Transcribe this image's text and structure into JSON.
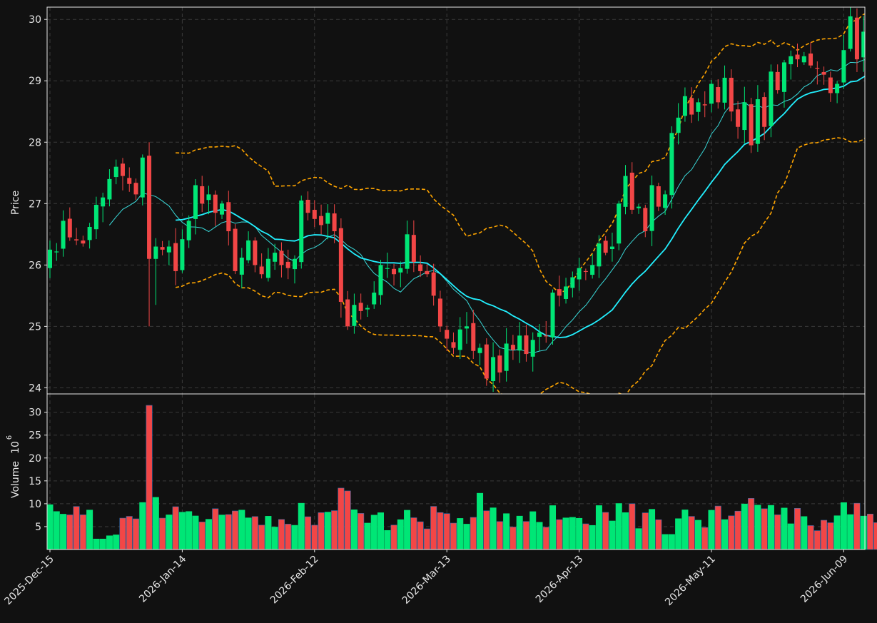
{
  "chart_data": {
    "type": "candlestick",
    "panels": [
      "price",
      "volume"
    ],
    "price_axis": {
      "label": "Price",
      "ylim": [
        23.9,
        30.2
      ],
      "ticks": [
        24,
        25,
        26,
        27,
        28,
        29,
        30
      ]
    },
    "volume_axis": {
      "label": "Volume",
      "scale_note": "6",
      "ylim": [
        0,
        34
      ],
      "ticks": [
        5,
        10,
        15,
        20,
        25,
        30
      ]
    },
    "x_axis": {
      "tick_labels": [
        "2025-Dec-15",
        "2026-Jan-14",
        "2026-Feb-12",
        "2026-Mar-13",
        "2026-Apr-13",
        "2026-May-11",
        "2026-Jun-09"
      ],
      "tick_indices": [
        0,
        20,
        40,
        60,
        80,
        100,
        120
      ]
    },
    "grid": true,
    "colors": {
      "background": "#111111",
      "up": "#00e676",
      "down": "#f24646",
      "ma_short": "#39d9d9",
      "ma_long": "#22f0ff",
      "bands": "#ffa500",
      "grid": "#3a3a3a",
      "axis": "#e6e6e6"
    },
    "closes": [
      26.25,
      26.22,
      26.72,
      26.45,
      26.4,
      26.35,
      26.62,
      26.98,
      27.1,
      27.4,
      27.6,
      27.45,
      27.32,
      27.15,
      27.75,
      26.1,
      26.3,
      26.25,
      26.3,
      25.9,
      26.42,
      26.72,
      27.3,
      27.0,
      27.15,
      26.85,
      27.0,
      26.55,
      25.9,
      26.12,
      26.4,
      26.0,
      25.85,
      26.1,
      26.2,
      26.0,
      25.95,
      26.1,
      27.05,
      26.85,
      26.75,
      26.65,
      26.85,
      26.55,
      25.4,
      25.0,
      25.35,
      25.25,
      25.3,
      25.55,
      26.0,
      25.95,
      25.85,
      25.95,
      26.5,
      26.05,
      25.9,
      25.85,
      25.5,
      25.0,
      24.8,
      24.65,
      24.95,
      25.0,
      24.6,
      24.65,
      24.15,
      24.5,
      24.25,
      24.72,
      24.62,
      24.85,
      24.55,
      24.78,
      24.9,
      24.85,
      25.55,
      25.5,
      25.65,
      25.8,
      25.95,
      25.9,
      26.0,
      26.35,
      26.2,
      26.3,
      27.0,
      27.45,
      26.9,
      26.95,
      26.55,
      27.3,
      26.95,
      27.15,
      28.15,
      28.4,
      28.75,
      28.45,
      28.65,
      28.6,
      28.95,
      28.65,
      29.05,
      28.5,
      28.25,
      28.65,
      27.95,
      28.7,
      28.25,
      29.15,
      28.85,
      29.3,
      29.4,
      29.35,
      29.4,
      29.25,
      29.2,
      29.1,
      28.8,
      28.95,
      29.5,
      30.05,
      29.35,
      29.8,
      29.6,
      29.45,
      29.7
    ]
  }
}
